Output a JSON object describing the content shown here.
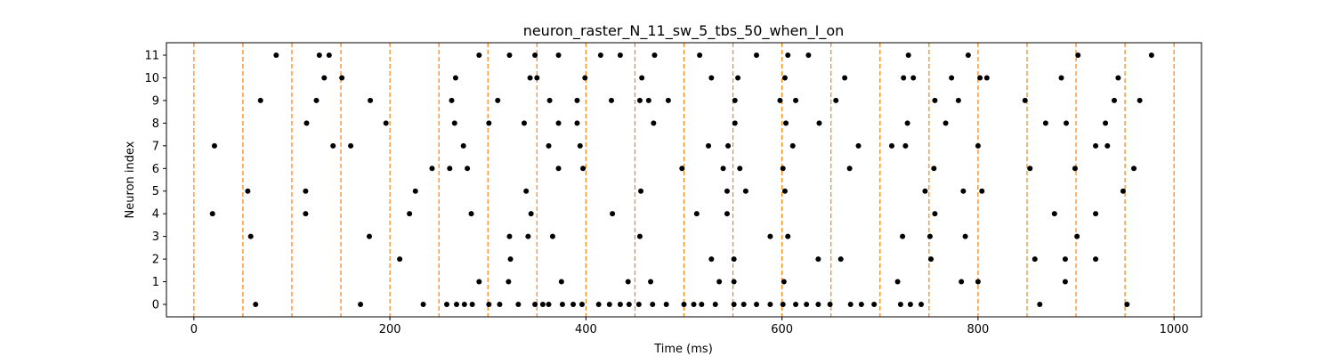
{
  "chart_data": {
    "type": "scatter",
    "title": "neuron_raster_N_11_sw_5_tbs_50_when_I_on",
    "xlabel": "Time (ms)",
    "ylabel": "Neuron index",
    "xlim": [
      -28,
      1028
    ],
    "ylim": [
      -0.55,
      11.55
    ],
    "xticks": [
      0,
      200,
      400,
      600,
      800,
      1000
    ],
    "yticks": [
      0,
      1,
      2,
      3,
      4,
      5,
      6,
      7,
      8,
      9,
      10,
      11
    ],
    "marker_color": "#000000",
    "vline_color": "#ff7f0e",
    "vlines": [
      0,
      50,
      100,
      150,
      200,
      250,
      300,
      350,
      400,
      450,
      500,
      550,
      600,
      650,
      700,
      750,
      800,
      850,
      900,
      950,
      1000
    ],
    "spikes": [
      {
        "neuron": 0,
        "times": [
          63,
          170,
          234,
          258,
          268,
          276,
          284,
          301,
          312,
          331,
          348,
          356,
          362,
          376,
          387,
          396,
          413,
          424,
          435,
          444,
          454,
          468,
          482,
          500,
          510,
          518,
          532,
          551,
          561,
          574,
          588,
          601,
          614,
          625,
          637,
          649,
          670,
          681,
          694,
          721,
          731,
          742,
          863,
          952
        ]
      },
      {
        "neuron": 1,
        "times": [
          291,
          321,
          375,
          443,
          466,
          536,
          551,
          602,
          718,
          783,
          800,
          889
        ]
      },
      {
        "neuron": 2,
        "times": [
          210,
          323,
          528,
          551,
          637,
          660,
          752,
          858,
          889,
          920
        ]
      },
      {
        "neuron": 3,
        "times": [
          58,
          179,
          322,
          341,
          366,
          455,
          588,
          606,
          723,
          751,
          787,
          901
        ]
      },
      {
        "neuron": 4,
        "times": [
          19,
          114,
          220,
          283,
          344,
          427,
          513,
          544,
          756,
          878,
          920
        ]
      },
      {
        "neuron": 5,
        "times": [
          55,
          114,
          226,
          339,
          456,
          544,
          563,
          603,
          746,
          785,
          804,
          948
        ]
      },
      {
        "neuron": 6,
        "times": [
          243,
          261,
          279,
          372,
          397,
          498,
          540,
          557,
          601,
          669,
          755,
          853,
          899,
          959
        ]
      },
      {
        "neuron": 7,
        "times": [
          21,
          142,
          160,
          275,
          362,
          394,
          525,
          545,
          611,
          678,
          712,
          726,
          800,
          920,
          932
        ]
      },
      {
        "neuron": 8,
        "times": [
          115,
          196,
          266,
          301,
          337,
          372,
          391,
          469,
          552,
          604,
          638,
          728,
          767,
          869,
          890,
          930
        ]
      },
      {
        "neuron": 9,
        "times": [
          68,
          125,
          180,
          263,
          310,
          363,
          391,
          426,
          455,
          464,
          484,
          552,
          598,
          614,
          655,
          756,
          780,
          848,
          939,
          965
        ]
      },
      {
        "neuron": 10,
        "times": [
          133,
          151,
          267,
          343,
          350,
          399,
          457,
          528,
          555,
          603,
          664,
          724,
          734,
          773,
          802,
          809,
          885,
          943
        ]
      },
      {
        "neuron": 11,
        "times": [
          84,
          128,
          138,
          291,
          322,
          348,
          372,
          415,
          435,
          470,
          516,
          574,
          606,
          627,
          729,
          790,
          902,
          977
        ]
      }
    ]
  }
}
